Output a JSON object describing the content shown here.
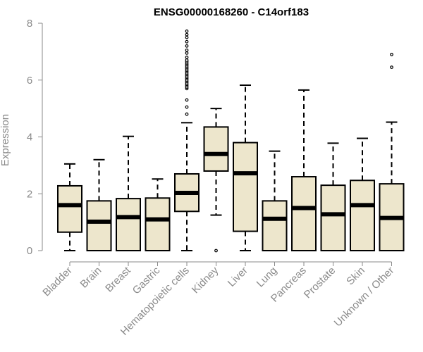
{
  "chart_data": {
    "type": "boxplot",
    "title": "ENSG00000168260 - C14orf183",
    "xlabel": "",
    "ylabel": "Expression",
    "ylim": [
      0,
      8
    ],
    "yticks": [
      0,
      2,
      4,
      6,
      8
    ],
    "box_fill": "#ede6cc",
    "categories": [
      "Bladder",
      "Brain",
      "Breast",
      "Gastric",
      "Hematopoietic cells",
      "Kidney",
      "Liver",
      "Lung",
      "Pancreas",
      "Prostate",
      "Skin",
      "Unknown / Other"
    ],
    "boxes": [
      {
        "min": 0.0,
        "q1": 0.65,
        "median": 1.6,
        "q3": 2.28,
        "max": 3.05,
        "outliers": []
      },
      {
        "min": 0.0,
        "q1": 0.0,
        "median": 1.02,
        "q3": 1.75,
        "max": 3.2,
        "outliers": []
      },
      {
        "min": 0.0,
        "q1": 0.0,
        "median": 1.18,
        "q3": 1.83,
        "max": 4.02,
        "outliers": []
      },
      {
        "min": 0.0,
        "q1": 0.0,
        "median": 1.1,
        "q3": 1.85,
        "max": 2.52,
        "outliers": []
      },
      {
        "min": 0.0,
        "q1": 1.38,
        "median": 2.03,
        "q3": 2.7,
        "max": 4.5,
        "outliers": [
          4.8,
          5.05,
          5.3,
          5.7,
          5.75,
          5.8,
          5.85,
          5.9,
          5.95,
          6.0,
          6.05,
          6.1,
          6.15,
          6.2,
          6.25,
          6.3,
          6.35,
          6.4,
          6.45,
          6.5,
          6.55,
          6.6,
          6.65,
          6.7,
          6.8,
          6.95,
          7.05,
          7.2,
          7.35,
          7.5,
          7.6,
          7.72
        ]
      },
      {
        "min": 1.25,
        "q1": 2.8,
        "median": 3.4,
        "q3": 4.35,
        "max": 5.0,
        "outliers": [
          0.0
        ]
      },
      {
        "min": 0.0,
        "q1": 0.68,
        "median": 2.72,
        "q3": 3.8,
        "max": 5.82,
        "outliers": []
      },
      {
        "min": 0.0,
        "q1": 0.0,
        "median": 1.12,
        "q3": 1.75,
        "max": 3.5,
        "outliers": []
      },
      {
        "min": 0.0,
        "q1": 0.0,
        "median": 1.5,
        "q3": 2.6,
        "max": 5.65,
        "outliers": []
      },
      {
        "min": 0.0,
        "q1": 0.0,
        "median": 1.28,
        "q3": 2.3,
        "max": 3.78,
        "outliers": []
      },
      {
        "min": 0.0,
        "q1": 0.0,
        "median": 1.6,
        "q3": 2.47,
        "max": 3.95,
        "outliers": []
      },
      {
        "min": 0.0,
        "q1": 0.0,
        "median": 1.15,
        "q3": 2.35,
        "max": 4.52,
        "outliers": [
          6.45,
          6.9
        ]
      }
    ]
  }
}
